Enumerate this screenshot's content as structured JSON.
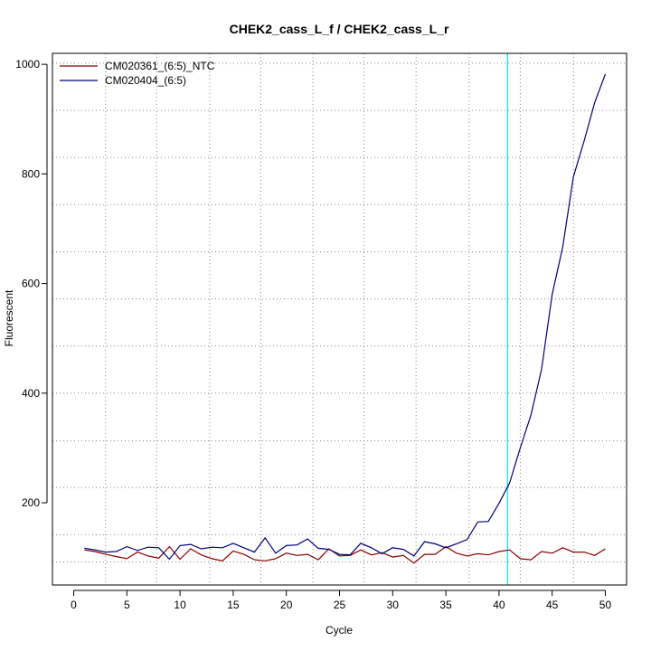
{
  "chart_data": {
    "type": "line",
    "title": "CHEK2_cass_L_f / CHEK2_cass_L_r",
    "xlabel": "Cycle",
    "ylabel": "Fluorescent",
    "xlim": [
      -2,
      52
    ],
    "ylim": [
      50,
      1020
    ],
    "xticks": [
      0,
      5,
      10,
      15,
      20,
      25,
      30,
      35,
      40,
      45,
      50
    ],
    "yticks": [
      200,
      400,
      600,
      800,
      1000
    ],
    "grid": true,
    "grid_x": [
      3,
      7.8,
      12.8,
      17.6,
      22.5,
      27.3,
      32.2,
      37.2,
      42,
      47
    ],
    "grid_y": [
      92,
      142,
      228,
      313,
      400,
      486,
      572,
      658,
      744,
      830,
      916,
      1002
    ],
    "threshold_x": 40.8,
    "threshold_color": "#00e5ee",
    "legend_position": "top-left",
    "series": [
      {
        "name": "CM020361_(6:5)_NTC",
        "color": "#8b0000",
        "x": [
          1,
          2,
          3,
          4,
          5,
          6,
          7,
          8,
          9,
          10,
          11,
          12,
          13,
          14,
          15,
          16,
          17,
          18,
          19,
          20,
          21,
          22,
          23,
          24,
          25,
          26,
          27,
          28,
          29,
          30,
          31,
          32,
          33,
          34,
          35,
          36,
          37,
          38,
          39,
          40,
          41,
          42,
          43,
          44,
          45,
          46,
          47,
          48,
          49,
          50
        ],
        "values": [
          114,
          111,
          106,
          102,
          98,
          110,
          103,
          99,
          120,
          97,
          116,
          105,
          98,
          94,
          112,
          106,
          96,
          94,
          98,
          108,
          104,
          106,
          96,
          116,
          103,
          104,
          114,
          105,
          109,
          101,
          104,
          90,
          106,
          106,
          120,
          108,
          103,
          107,
          105,
          111,
          114,
          98,
          96,
          111,
          108,
          118,
          110,
          110,
          104,
          116
        ]
      },
      {
        "name": "CM020404_(6:5)",
        "color": "#000080",
        "x": [
          1,
          2,
          3,
          4,
          5,
          6,
          7,
          8,
          9,
          10,
          11,
          12,
          13,
          14,
          15,
          16,
          17,
          18,
          19,
          20,
          21,
          22,
          23,
          24,
          25,
          26,
          27,
          28,
          29,
          30,
          31,
          32,
          33,
          34,
          35,
          36,
          37,
          38,
          39,
          40,
          41,
          42,
          43,
          44,
          45,
          46,
          47,
          48,
          49,
          50
        ],
        "values": [
          117,
          114,
          110,
          111,
          120,
          113,
          119,
          118,
          97,
          122,
          124,
          116,
          119,
          118,
          126,
          118,
          110,
          136,
          108,
          122,
          123,
          134,
          117,
          115,
          106,
          105,
          126,
          118,
          107,
          118,
          115,
          103,
          129,
          125,
          118,
          125,
          133,
          165,
          166,
          199,
          236,
          300,
          360,
          443,
          580,
          667,
          795,
          860,
          930,
          982
        ]
      }
    ]
  }
}
